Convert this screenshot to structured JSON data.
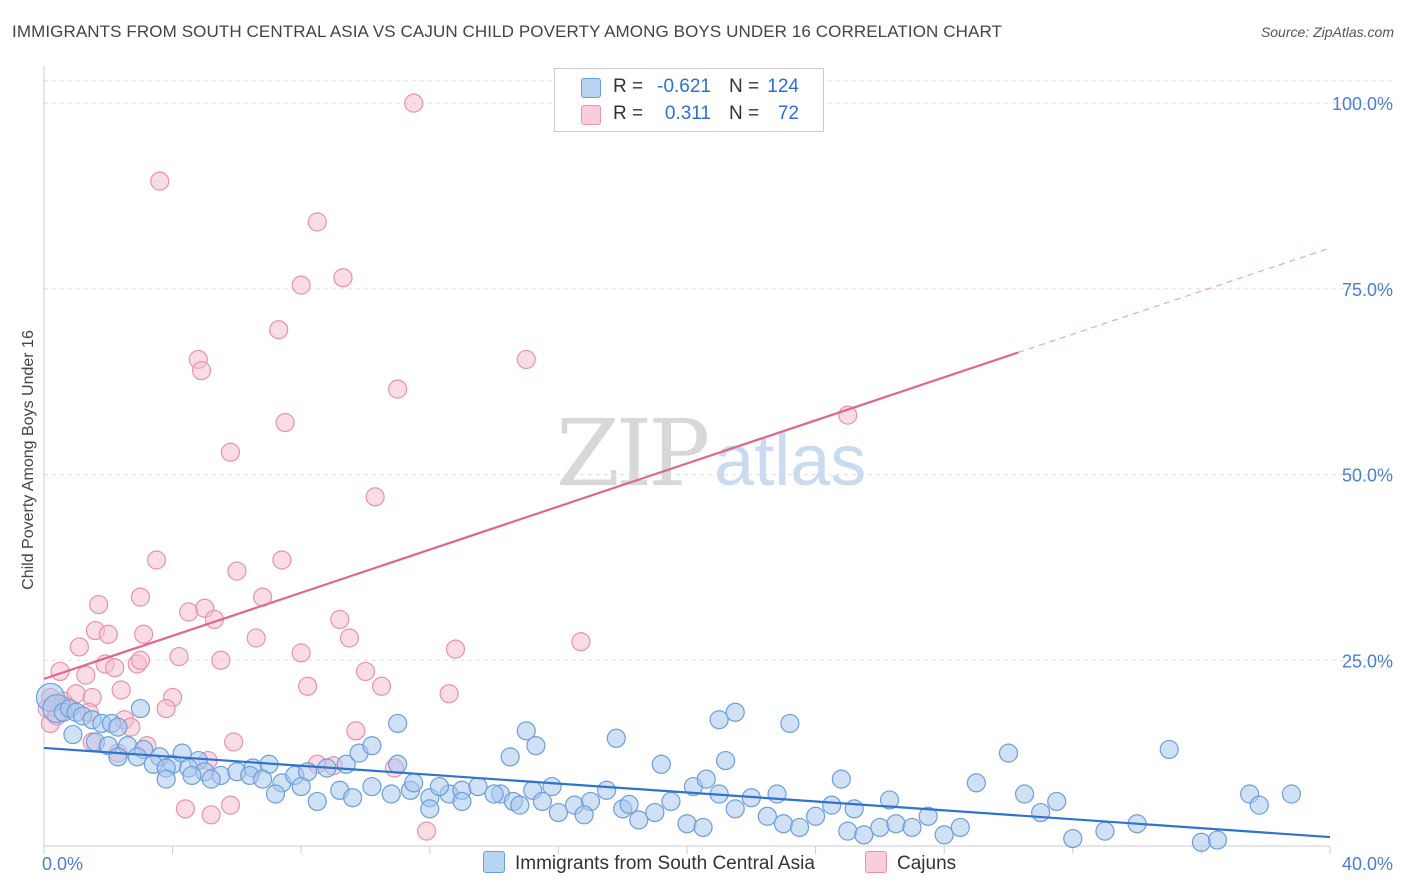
{
  "title": "IMMIGRANTS FROM SOUTH CENTRAL ASIA VS CAJUN CHILD POVERTY AMONG BOYS UNDER 16 CORRELATION CHART",
  "source": "Source: ZipAtlas.com",
  "watermark": {
    "zip": "ZIP",
    "atlas": "atlas"
  },
  "colors": {
    "blue_fill": "#a9c6ec",
    "blue_stroke": "#6a9fdc",
    "blue_line": "#2f72cf",
    "pink_fill": "#f5bfd0",
    "pink_stroke": "#e991ad",
    "pink_line": "#e0658f",
    "axis_text": "#4a7fd0",
    "grid": "#dddddd"
  },
  "legend": {
    "rows": [
      {
        "r_label": "R =",
        "r_value": "-0.621",
        "n_label": "N =",
        "n_value": "124"
      },
      {
        "r_label": "R =",
        "r_value": "0.311",
        "n_label": "N =",
        "n_value": "72"
      }
    ]
  },
  "bottom_legend": {
    "series1": "Immigrants from South Central Asia",
    "series2": "Cajuns"
  },
  "chart_data": {
    "type": "scatter",
    "title": "IMMIGRANTS FROM SOUTH CENTRAL ASIA VS CAJUN CHILD POVERTY AMONG BOYS UNDER 16 CORRELATION CHART",
    "xlabel": "",
    "ylabel": "Child Poverty Among Boys Under 16",
    "xlim": [
      0,
      40
    ],
    "ylim": [
      0,
      105
    ],
    "x_tick_labels": [
      "0.0%",
      "40.0%"
    ],
    "y_ticks": [
      25,
      50,
      75,
      100
    ],
    "y_tick_labels": [
      "25.0%",
      "50.0%",
      "75.0%",
      "100.0%"
    ],
    "grid": true,
    "series": [
      {
        "name": "Immigrants from South Central Asia",
        "r": -0.621,
        "n": 124,
        "trend": {
          "x0": 0,
          "y0": 13.2,
          "x1": 40,
          "y1": 1.2,
          "solid_until": 40
        },
        "points": [
          [
            0.2,
            20
          ],
          [
            0.4,
            18.5
          ],
          [
            0.6,
            18
          ],
          [
            0.8,
            18.5
          ],
          [
            1.0,
            18
          ],
          [
            1.2,
            17.5
          ],
          [
            1.5,
            17
          ],
          [
            1.8,
            16.5
          ],
          [
            2.1,
            16.5
          ],
          [
            2.3,
            16
          ],
          [
            0.9,
            15
          ],
          [
            1.6,
            14
          ],
          [
            2.0,
            13.5
          ],
          [
            2.6,
            13.5
          ],
          [
            3.1,
            13
          ],
          [
            3.0,
            18.5
          ],
          [
            3.6,
            12
          ],
          [
            4.0,
            11
          ],
          [
            4.3,
            12.5
          ],
          [
            4.8,
            11.5
          ],
          [
            2.3,
            12
          ],
          [
            2.9,
            12
          ],
          [
            3.4,
            11
          ],
          [
            3.8,
            10.5
          ],
          [
            4.5,
            10.5
          ],
          [
            5.0,
            10
          ],
          [
            5.5,
            9.5
          ],
          [
            6.0,
            10
          ],
          [
            6.5,
            10.5
          ],
          [
            7.0,
            11
          ],
          [
            3.8,
            9
          ],
          [
            4.6,
            9.5
          ],
          [
            5.2,
            9
          ],
          [
            6.4,
            9.5
          ],
          [
            6.8,
            9
          ],
          [
            7.4,
            8.5
          ],
          [
            7.8,
            9.5
          ],
          [
            8.2,
            10
          ],
          [
            8.8,
            10.5
          ],
          [
            9.4,
            11
          ],
          [
            7.2,
            7
          ],
          [
            8.0,
            8
          ],
          [
            8.5,
            6
          ],
          [
            9.2,
            7.5
          ],
          [
            9.6,
            6.5
          ],
          [
            10.2,
            8
          ],
          [
            10.8,
            7
          ],
          [
            11.4,
            7.5
          ],
          [
            12.0,
            6.5
          ],
          [
            12.6,
            7
          ],
          [
            9.8,
            12.5
          ],
          [
            10.2,
            13.5
          ],
          [
            11.0,
            11
          ],
          [
            12.3,
            8
          ],
          [
            13.0,
            7.5
          ],
          [
            13.5,
            8
          ],
          [
            14.2,
            7
          ],
          [
            14.6,
            6
          ],
          [
            15.2,
            7.5
          ],
          [
            15.8,
            8
          ],
          [
            11.0,
            16.5
          ],
          [
            11.5,
            8.5
          ],
          [
            12.0,
            5
          ],
          [
            13.0,
            6
          ],
          [
            14.0,
            7
          ],
          [
            14.8,
            5.5
          ],
          [
            15.5,
            6
          ],
          [
            16.0,
            4.5
          ],
          [
            16.5,
            5.5
          ],
          [
            17.0,
            6
          ],
          [
            17.5,
            7.5
          ],
          [
            18.0,
            5
          ],
          [
            18.5,
            3.5
          ],
          [
            19.0,
            4.5
          ],
          [
            19.5,
            6
          ],
          [
            20.0,
            3
          ],
          [
            20.5,
            2.5
          ],
          [
            21.0,
            7
          ],
          [
            21.5,
            5
          ],
          [
            22.0,
            6.5
          ],
          [
            14.5,
            12
          ],
          [
            15.0,
            15.5
          ],
          [
            15.3,
            13.5
          ],
          [
            17.8,
            14.5
          ],
          [
            19.2,
            11
          ],
          [
            20.2,
            8
          ],
          [
            20.6,
            9
          ],
          [
            21.2,
            11.5
          ],
          [
            21.0,
            17
          ],
          [
            21.5,
            18
          ],
          [
            22.5,
            4
          ],
          [
            23.0,
            3
          ],
          [
            23.5,
            2.5
          ],
          [
            24.0,
            4
          ],
          [
            24.5,
            5.5
          ],
          [
            25.0,
            2
          ],
          [
            25.5,
            1.5
          ],
          [
            26.0,
            2.5
          ],
          [
            26.5,
            3
          ],
          [
            27.0,
            2.5
          ],
          [
            22.8,
            7
          ],
          [
            23.2,
            16.5
          ],
          [
            24.8,
            9
          ],
          [
            26.3,
            6.2
          ],
          [
            27.5,
            4
          ],
          [
            28.0,
            1.5
          ],
          [
            28.5,
            2.5
          ],
          [
            29.0,
            8.5
          ],
          [
            30.0,
            12.5
          ],
          [
            30.5,
            7
          ],
          [
            31.0,
            4.5
          ],
          [
            31.5,
            6
          ],
          [
            32.0,
            1
          ],
          [
            33.0,
            2
          ],
          [
            34.0,
            3
          ],
          [
            35.0,
            13
          ],
          [
            36.0,
            0.5
          ],
          [
            36.5,
            0.8
          ],
          [
            37.5,
            7
          ],
          [
            37.8,
            5.5
          ],
          [
            38.8,
            7
          ],
          [
            25.2,
            5
          ],
          [
            18.2,
            5.6
          ],
          [
            16.8,
            4.2
          ]
        ]
      },
      {
        "name": "Cajuns",
        "r": 0.311,
        "n": 72,
        "trend": {
          "x0": 0,
          "y0": 22.5,
          "x1": 40,
          "y1": 80.5,
          "solid_until": 30.3
        },
        "points": [
          [
            11.5,
            100
          ],
          [
            3.6,
            89.5
          ],
          [
            8.5,
            84
          ],
          [
            9.3,
            76.5
          ],
          [
            8.0,
            75.5
          ],
          [
            7.3,
            69.5
          ],
          [
            4.8,
            65.5
          ],
          [
            4.9,
            64
          ],
          [
            15.0,
            65.5
          ],
          [
            11.0,
            61.5
          ],
          [
            7.5,
            57
          ],
          [
            25.0,
            58
          ],
          [
            5.8,
            53
          ],
          [
            10.3,
            47
          ],
          [
            3.5,
            38.5
          ],
          [
            6.0,
            37
          ],
          [
            7.4,
            38.5
          ],
          [
            3.0,
            33.5
          ],
          [
            6.8,
            33.5
          ],
          [
            1.7,
            32.5
          ],
          [
            4.5,
            31.5
          ],
          [
            5.0,
            32
          ],
          [
            5.3,
            30.5
          ],
          [
            9.2,
            30.5
          ],
          [
            1.6,
            29
          ],
          [
            2.0,
            28.5
          ],
          [
            3.1,
            28.5
          ],
          [
            6.6,
            28
          ],
          [
            9.5,
            28
          ],
          [
            1.1,
            26.8
          ],
          [
            4.2,
            25.5
          ],
          [
            5.5,
            25
          ],
          [
            8.0,
            26
          ],
          [
            12.8,
            26.5
          ],
          [
            16.7,
            27.5
          ],
          [
            0.5,
            23.5
          ],
          [
            1.3,
            23
          ],
          [
            1.9,
            24.5
          ],
          [
            2.2,
            24
          ],
          [
            2.9,
            24.5
          ],
          [
            3.0,
            25
          ],
          [
            10.0,
            23.5
          ],
          [
            8.2,
            21.5
          ],
          [
            10.5,
            21.5
          ],
          [
            12.6,
            20.5
          ],
          [
            0.2,
            20
          ],
          [
            0.6,
            19.5
          ],
          [
            1.0,
            20.5
          ],
          [
            1.5,
            20
          ],
          [
            2.4,
            21
          ],
          [
            4.0,
            20
          ],
          [
            0.1,
            18.5
          ],
          [
            0.7,
            18.8
          ],
          [
            1.4,
            18
          ],
          [
            3.8,
            18.5
          ],
          [
            0.2,
            16.5
          ],
          [
            2.5,
            17
          ],
          [
            2.7,
            16
          ],
          [
            9.7,
            15.5
          ],
          [
            1.5,
            14
          ],
          [
            5.1,
            11.5
          ],
          [
            5.9,
            14
          ],
          [
            8.5,
            11
          ],
          [
            9.0,
            10.8
          ],
          [
            10.9,
            10.5
          ],
          [
            4.4,
            5
          ],
          [
            5.2,
            4.2
          ],
          [
            5.8,
            5.5
          ],
          [
            11.9,
            2
          ],
          [
            0.4,
            17.5
          ],
          [
            2.3,
            12.5
          ],
          [
            3.2,
            13.5
          ]
        ]
      }
    ]
  }
}
